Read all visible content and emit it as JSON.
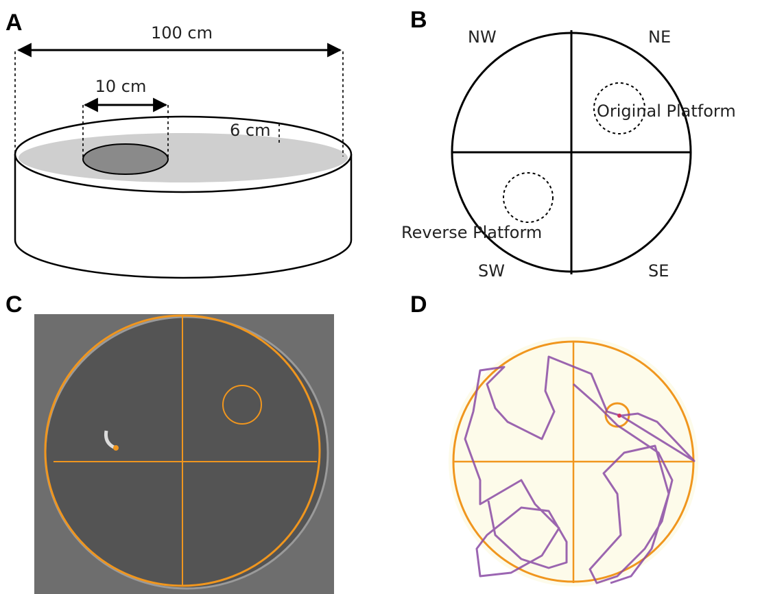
{
  "panels": {
    "a": {
      "label": "A",
      "width_label": "100 cm",
      "platform_label": "10 cm",
      "depth_label": "6 cm"
    },
    "b": {
      "label": "B",
      "quadrants": {
        "nw": "NW",
        "ne": "NE",
        "sw": "SW",
        "se": "SE"
      },
      "original": "Original Platform",
      "reverse": "Reverse Platform"
    },
    "c": {
      "label": "C"
    },
    "d": {
      "label": "D"
    }
  }
}
